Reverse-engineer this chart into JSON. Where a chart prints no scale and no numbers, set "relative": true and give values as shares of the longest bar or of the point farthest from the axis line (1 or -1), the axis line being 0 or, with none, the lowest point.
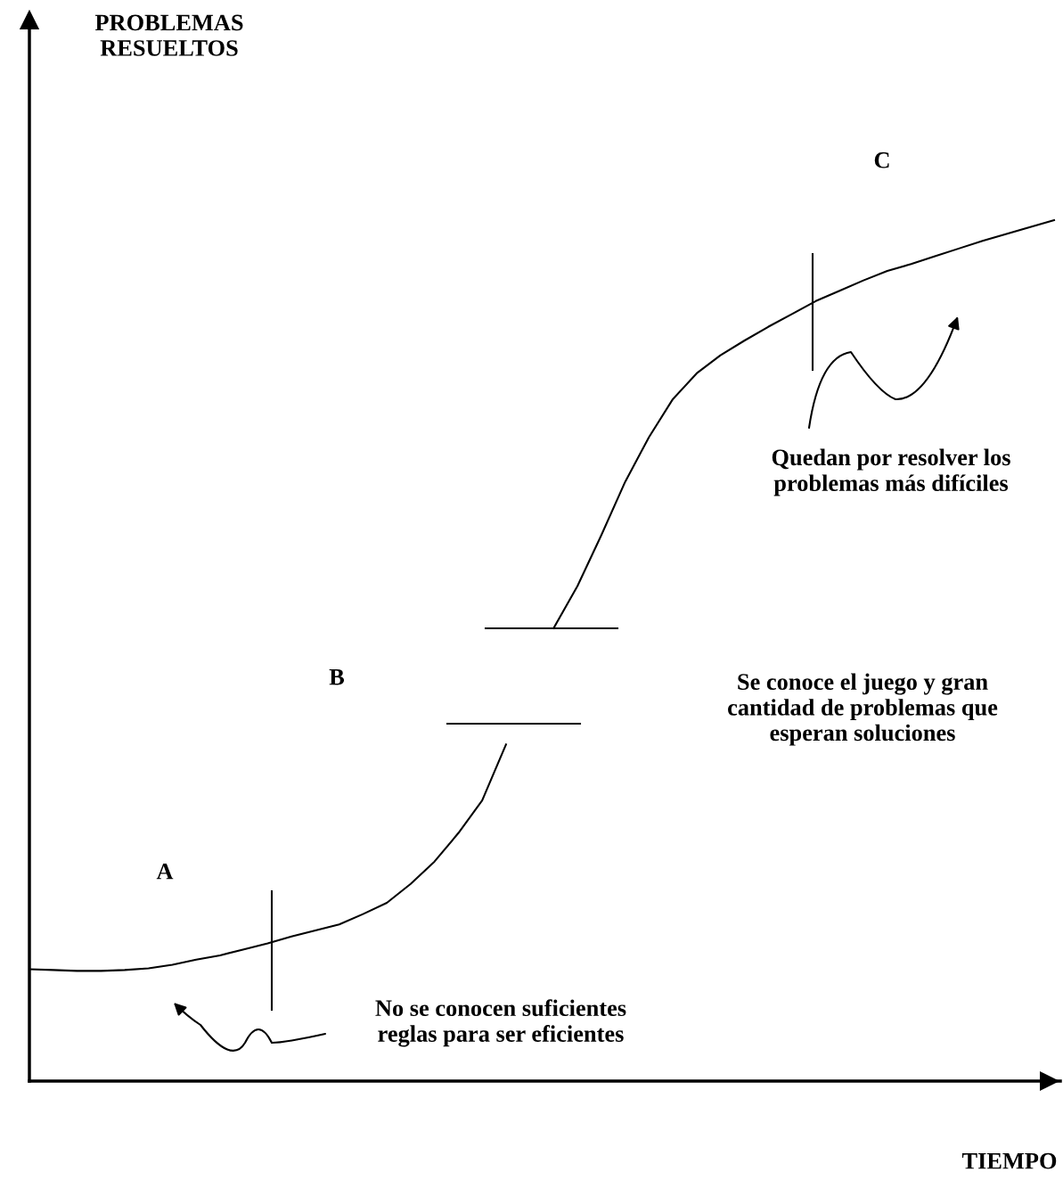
{
  "chart_data": {
    "type": "line",
    "relative": true,
    "tick_labels": false,
    "grid": false,
    "legend": false,
    "marker": "none",
    "line_style": "solid",
    "xlabel": "TIEMPO",
    "categories": [
      null,
      null,
      null,
      null,
      null,
      null,
      null,
      null,
      null,
      null,
      null,
      null,
      null,
      null,
      null,
      null,
      null,
      null,
      null,
      null,
      null,
      null,
      null,
      null,
      null,
      null,
      null,
      null,
      null,
      null,
      null,
      null,
      null,
      null,
      null,
      null,
      null,
      null,
      null,
      null,
      null,
      null,
      null,
      null
    ],
    "series": [
      {
        "color": "#000000",
        "values": [
          0.13,
          0.129,
          0.128,
          0.128,
          0.129,
          0.131,
          0.135,
          0.141,
          0.146,
          0.153,
          0.16,
          0.168,
          0.175,
          0.182,
          0.194,
          0.207,
          0.229,
          0.255,
          0.288,
          0.326,
          0.391,
          null,
          null,
          null,
          null,
          null,
          null,
          null,
          null,
          null,
          null,
          null,
          null,
          null,
          null,
          null,
          null,
          null,
          null,
          null,
          null,
          null,
          null,
          null
        ]
      },
      {
        "color": "#000000",
        "values": [
          null,
          null,
          null,
          null,
          null,
          null,
          null,
          null,
          null,
          null,
          null,
          null,
          null,
          null,
          null,
          null,
          null,
          null,
          null,
          null,
          null,
          null,
          0.526,
          0.575,
          0.634,
          0.696,
          0.748,
          0.792,
          0.822,
          0.843,
          0.86,
          0.876,
          0.891,
          0.906,
          0.918,
          0.93,
          0.941,
          0.949,
          0.958,
          0.967,
          0.976,
          0.984,
          0.992,
          1.0
        ]
      }
    ],
    "annotations": [
      "PROBLEMAS\nRESUELTOS",
      "A",
      "B",
      "C",
      "No se conocen suficientes\nreglas para ser eficientes",
      "Se conoce el juego y gran\ncantidad de problemas que\nesperan soluciones",
      "Quedan por resolver los\nproblemas más difíciles"
    ]
  }
}
